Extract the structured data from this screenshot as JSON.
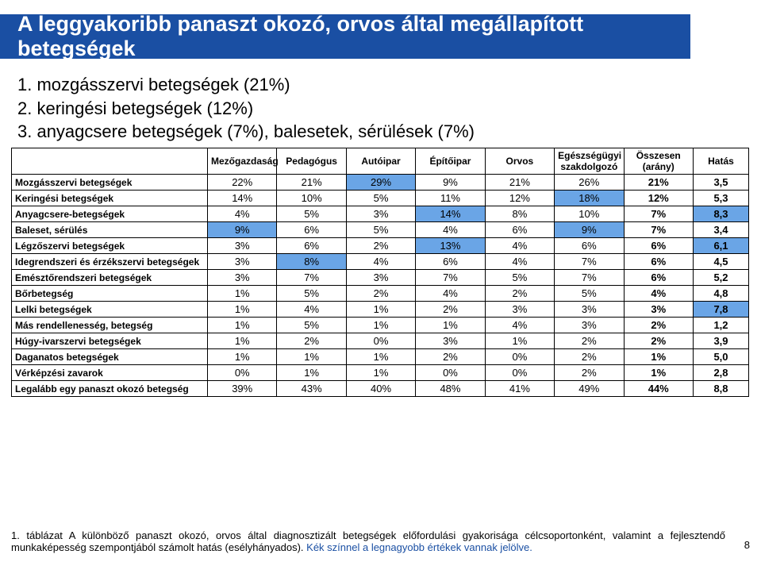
{
  "title": "A leggyakoribb panaszt okozó, orvos által megállapított betegségek",
  "subtitle_lines": [
    "1. mozgásszervi betegségek (21%)",
    "2. keringési betegségek (12%)",
    "3. anyagcsere betegségek (7%), balesetek, sérülések (7%)"
  ],
  "colors": {
    "band_bg": "#1a4fa3",
    "highlight_bg": "#6aa5e6",
    "border": "#000000"
  },
  "table": {
    "columns": [
      "Mezőgazdaság",
      "Pedagógus",
      "Autóipar",
      "Építőipar",
      "Orvos",
      "Egészségügyi szakdolgozó",
      "Összesen (arány)",
      "Hatás"
    ],
    "rows": [
      {
        "label": "Mozgásszervi betegségek",
        "cells": [
          "22%",
          "21%",
          "29%",
          "9%",
          "21%",
          "26%",
          "21%",
          "3,5"
        ],
        "hl": [
          false,
          false,
          true,
          false,
          false,
          false,
          false,
          false
        ]
      },
      {
        "label": "Keringési betegségek",
        "cells": [
          "14%",
          "10%",
          "5%",
          "11%",
          "12%",
          "18%",
          "12%",
          "5,3"
        ],
        "hl": [
          false,
          false,
          false,
          false,
          false,
          true,
          false,
          false
        ]
      },
      {
        "label": "Anyagcsere-betegségek",
        "cells": [
          "4%",
          "5%",
          "3%",
          "14%",
          "8%",
          "10%",
          "7%",
          "8,3"
        ],
        "hl": [
          false,
          false,
          false,
          true,
          false,
          false,
          false,
          true
        ]
      },
      {
        "label": "Baleset, sérülés",
        "cells": [
          "9%",
          "6%",
          "5%",
          "4%",
          "6%",
          "9%",
          "7%",
          "3,4"
        ],
        "hl": [
          true,
          false,
          false,
          false,
          false,
          true,
          false,
          false
        ]
      },
      {
        "label": "Légzőszervi betegségek",
        "cells": [
          "3%",
          "6%",
          "2%",
          "13%",
          "4%",
          "6%",
          "6%",
          "6,1"
        ],
        "hl": [
          false,
          false,
          false,
          true,
          false,
          false,
          false,
          true
        ]
      },
      {
        "label": "Idegrendszeri és érzékszervi betegségek",
        "cells": [
          "3%",
          "8%",
          "4%",
          "6%",
          "4%",
          "7%",
          "6%",
          "4,5"
        ],
        "hl": [
          false,
          true,
          false,
          false,
          false,
          false,
          false,
          false
        ]
      },
      {
        "label": "Emésztőrendszeri betegségek",
        "cells": [
          "3%",
          "7%",
          "3%",
          "7%",
          "5%",
          "7%",
          "6%",
          "5,2"
        ],
        "hl": [
          false,
          false,
          false,
          false,
          false,
          false,
          false,
          false
        ]
      },
      {
        "label": "Bőrbetegség",
        "cells": [
          "1%",
          "5%",
          "2%",
          "4%",
          "2%",
          "5%",
          "4%",
          "4,8"
        ],
        "hl": [
          false,
          false,
          false,
          false,
          false,
          false,
          false,
          false
        ]
      },
      {
        "label": "Lelki betegségek",
        "cells": [
          "1%",
          "4%",
          "1%",
          "2%",
          "3%",
          "3%",
          "3%",
          "7,8"
        ],
        "hl": [
          false,
          false,
          false,
          false,
          false,
          false,
          false,
          true
        ]
      },
      {
        "label": "Más rendellenesség, betegség",
        "cells": [
          "1%",
          "5%",
          "1%",
          "1%",
          "4%",
          "3%",
          "2%",
          "1,2"
        ],
        "hl": [
          false,
          false,
          false,
          false,
          false,
          false,
          false,
          false
        ]
      },
      {
        "label": "Húgy-ivarszervi betegségek",
        "cells": [
          "1%",
          "2%",
          "0%",
          "3%",
          "1%",
          "2%",
          "2%",
          "3,9"
        ],
        "hl": [
          false,
          false,
          false,
          false,
          false,
          false,
          false,
          false
        ]
      },
      {
        "label": "Daganatos betegségek",
        "cells": [
          "1%",
          "1%",
          "1%",
          "2%",
          "0%",
          "2%",
          "1%",
          "5,0"
        ],
        "hl": [
          false,
          false,
          false,
          false,
          false,
          false,
          false,
          false
        ]
      },
      {
        "label": "Vérképzési zavarok",
        "cells": [
          "0%",
          "1%",
          "1%",
          "0%",
          "0%",
          "2%",
          "1%",
          "2,8"
        ],
        "hl": [
          false,
          false,
          false,
          false,
          false,
          false,
          false,
          false
        ]
      },
      {
        "label": "Legalább egy panaszt okozó betegség",
        "cells": [
          "39%",
          "43%",
          "40%",
          "48%",
          "41%",
          "49%",
          "44%",
          "8,8"
        ],
        "hl": [
          false,
          false,
          false,
          false,
          false,
          false,
          false,
          false
        ]
      }
    ]
  },
  "footnote_plain": "1. táblázat A különböző panaszt okozó, orvos által diagnosztizált betegségek előfordulási gyakorisága célcsoportonként, valamint a fejlesztendő munkaképesség szempontjából számolt hatás (esélyhányados). ",
  "footnote_blue": "Kék színnel a legnagyobb értékek vannak jelölve.",
  "page_number": "8"
}
